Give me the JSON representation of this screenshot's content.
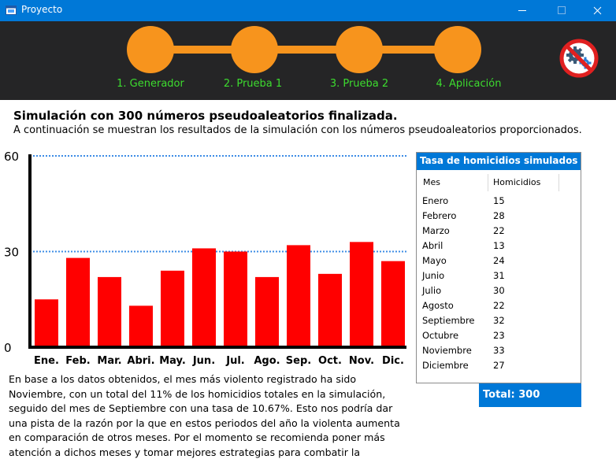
{
  "window": {
    "title": "Proyecto"
  },
  "stepper": {
    "steps": [
      {
        "label": "1. Generador"
      },
      {
        "label": "2. Prueba 1"
      },
      {
        "label": "3. Prueba 2"
      },
      {
        "label": "4. Aplicación"
      }
    ]
  },
  "content": {
    "heading": "Simulación con 300 números pseudoaleatorios finalizada.",
    "subheading": "A continuación se muestran los resultados de la simulación con los números pseudoaleatorios proporcionados.",
    "paragraph": "En base a los datos obtenidos, el mes más violento registrado ha sido Noviembre, con un total del 11% de los homicidios totales en la simulación, seguido del mes de Septiembre con una tasa de 10.67%. Esto nos podría dar una pista de la razón por la que en estos periodos del año la violenta aumenta en comparación de otros meses. Por el momento se recomienda poner más atención a dichos meses y tomar mejores estrategias para combatir la violencia."
  },
  "chart_data": {
    "type": "bar",
    "categories": [
      "Ene.",
      "Feb.",
      "Mar.",
      "Abri.",
      "May.",
      "Jun.",
      "Jul.",
      "Ago.",
      "Sep.",
      "Oct.",
      "Nov.",
      "Dic."
    ],
    "values": [
      15,
      28,
      22,
      13,
      24,
      31,
      30,
      22,
      32,
      23,
      33,
      27
    ],
    "yticks": [
      "0",
      "30",
      "60"
    ],
    "ylim": [
      0,
      60
    ],
    "reference_lines": [
      30,
      60
    ],
    "bar_color": "#ff0000",
    "reference_line_color": "#3c8ce6"
  },
  "table": {
    "title": "Tasa de homicidios simulados",
    "columns": [
      "Mes",
      "Homicidios"
    ],
    "rows": [
      {
        "mes": "Enero",
        "homicidios": "15"
      },
      {
        "mes": "Febrero",
        "homicidios": "28"
      },
      {
        "mes": "Marzo",
        "homicidios": "22"
      },
      {
        "mes": "Abril",
        "homicidios": "13"
      },
      {
        "mes": "Mayo",
        "homicidios": "24"
      },
      {
        "mes": "Junio",
        "homicidios": "31"
      },
      {
        "mes": "Julio",
        "homicidios": "30"
      },
      {
        "mes": "Agosto",
        "homicidios": "22"
      },
      {
        "mes": "Septiembre",
        "homicidios": "32"
      },
      {
        "mes": "Octubre",
        "homicidios": "23"
      },
      {
        "mes": "Noviembre",
        "homicidios": "33"
      },
      {
        "mes": "Diciembre",
        "homicidios": "27"
      }
    ],
    "total_label": "Total: 300"
  },
  "colors": {
    "title_bar": "#0078d7",
    "header_bg": "#252526",
    "step_accent": "#f7941d",
    "step_label": "#3ddc2f"
  },
  "icons": {
    "app": "window-app-icon",
    "settings": "settings-disabled-icon"
  }
}
